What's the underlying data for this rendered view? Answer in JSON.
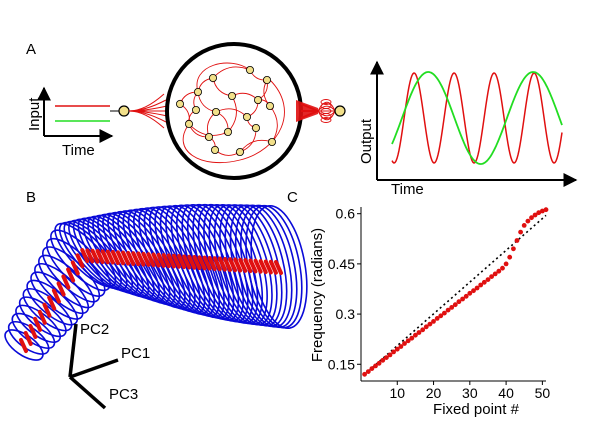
{
  "panels": {
    "a": {
      "letter": "A",
      "input_ylabel": "Input",
      "input_xlabel": "Time",
      "output_ylabel": "Output",
      "output_xlabel": "Time"
    },
    "b": {
      "letter": "B",
      "axis_labels": [
        "PC2",
        "PC1",
        "PC3"
      ]
    },
    "c": {
      "letter": "C"
    }
  },
  "colors": {
    "red": "#e01010",
    "green": "#22dd22",
    "blue": "#0a0ad8",
    "node_fill": "#f2e08a",
    "black": "#000000"
  },
  "chart_data": {
    "type": "scatter",
    "title": "",
    "xlabel": "Fixed point #",
    "ylabel": "Frequency (radians)",
    "xlim": [
      0,
      51
    ],
    "ylim": [
      0.1,
      0.62
    ],
    "xticks": [
      10,
      20,
      30,
      40,
      50
    ],
    "yticks": [
      0.15,
      0.3,
      0.45,
      0.6
    ],
    "ytick_labels": [
      "0.15",
      "0.3",
      "0.45",
      "0.6"
    ],
    "series": [
      {
        "style": "red-dots",
        "x": [
          1,
          2,
          3,
          4,
          5,
          6,
          7,
          8,
          9,
          10,
          11,
          12,
          13,
          14,
          15,
          16,
          17,
          18,
          19,
          20,
          21,
          22,
          23,
          24,
          25,
          26,
          27,
          28,
          29,
          30,
          31,
          32,
          33,
          34,
          35,
          36,
          37,
          38,
          39,
          40,
          41,
          42,
          43,
          44,
          45,
          46,
          47,
          48,
          49,
          50,
          51
        ],
        "y": [
          0.12,
          0.128,
          0.137,
          0.145,
          0.153,
          0.162,
          0.17,
          0.178,
          0.187,
          0.195,
          0.203,
          0.212,
          0.22,
          0.228,
          0.237,
          0.245,
          0.253,
          0.262,
          0.27,
          0.278,
          0.287,
          0.295,
          0.303,
          0.312,
          0.32,
          0.328,
          0.337,
          0.345,
          0.353,
          0.362,
          0.37,
          0.378,
          0.387,
          0.395,
          0.403,
          0.412,
          0.42,
          0.428,
          0.437,
          0.45,
          0.47,
          0.495,
          0.52,
          0.545,
          0.565,
          0.578,
          0.588,
          0.596,
          0.603,
          0.608,
          0.612
        ]
      },
      {
        "style": "black-dotted",
        "x": [
          1,
          51
        ],
        "y": [
          0.12,
          0.595
        ]
      }
    ]
  }
}
